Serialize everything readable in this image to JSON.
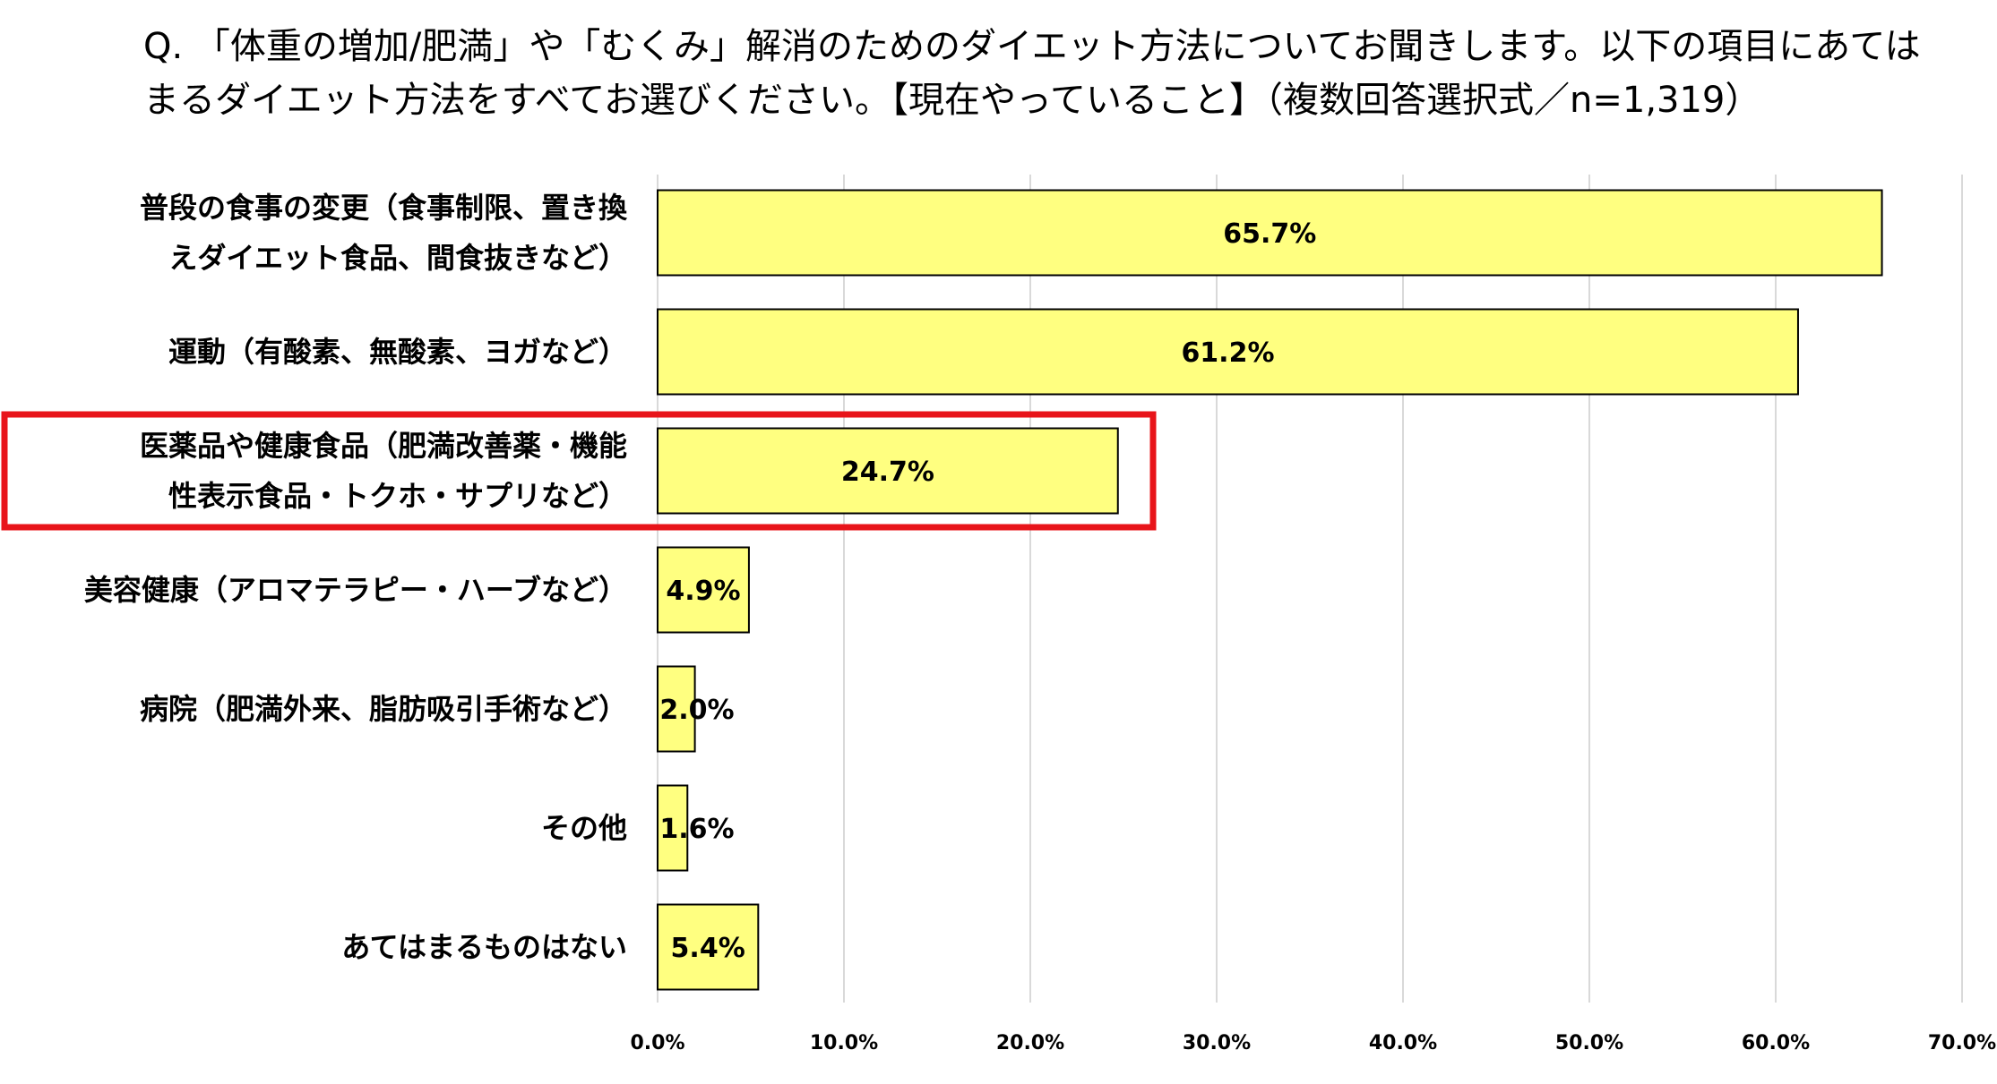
{
  "question": "Q. 「体重の増加/肥満」や「むくみ」解消のためのダイエット方法についてお聞きします。以下の項目にあてはまるダイエット方法をすべてお選びください。【現在やっていること】（複数回答選択式／n=1,319）",
  "chart_data": {
    "type": "bar",
    "orientation": "horizontal",
    "categories": [
      [
        "普段の食事の変更（食事制限、置き換",
        "えダイエット食品、間食抜きなど）"
      ],
      [
        "運動（有酸素、無酸素、ヨガなど）"
      ],
      [
        "医薬品や健康食品（肥満改善薬・機能",
        "性表示食品・トクホ・サプリなど）"
      ],
      [
        "美容健康（アロマテラピー・ハーブなど）"
      ],
      [
        "病院（肥満外来、脂肪吸引手術など）"
      ],
      [
        "その他"
      ],
      [
        "あてはまるものはない"
      ]
    ],
    "values": [
      65.7,
      61.2,
      24.7,
      4.9,
      2.0,
      1.6,
      5.4
    ],
    "value_labels": [
      "65.7%",
      "61.2%",
      "24.7%",
      "4.9%",
      "2.0%",
      "1.6%",
      "5.4%"
    ],
    "xlim": [
      0,
      70
    ],
    "ticks": [
      "0.0%",
      "10.0%",
      "20.0%",
      "30.0%",
      "40.0%",
      "50.0%",
      "60.0%",
      "70.0%"
    ],
    "grid": true,
    "highlight_index": 2,
    "colors": {
      "bar": "#ffff80",
      "bar_border": "#000000",
      "grid": "#d9d9d9",
      "highlight": "#e8141a"
    }
  }
}
